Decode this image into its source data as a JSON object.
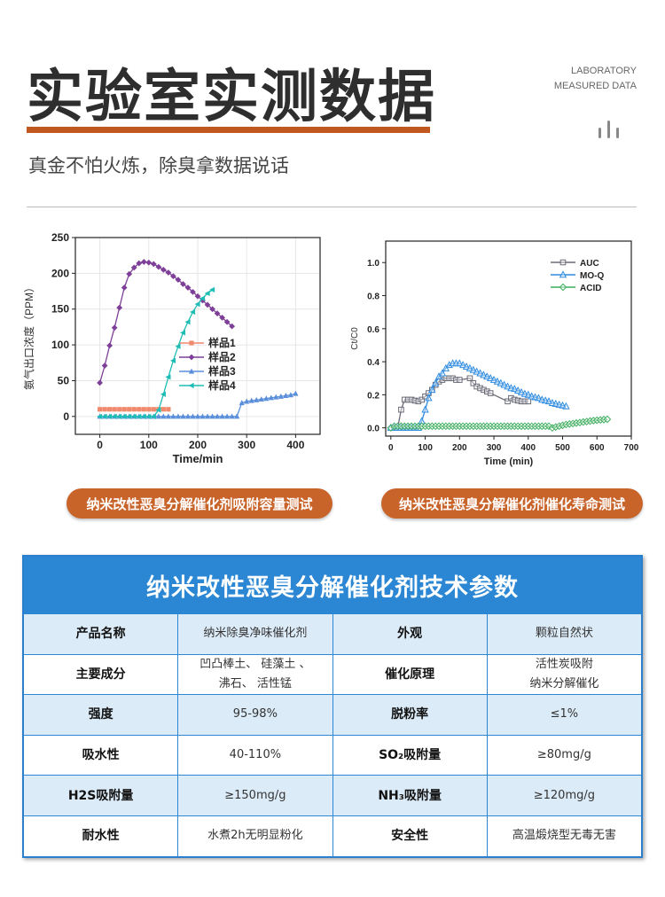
{
  "header": {
    "title": "实验室实测数据",
    "subtitle": "真金不怕火炼，除臭拿数据说话",
    "en_line1": "LABORATORY",
    "en_line2": "MEASURED DATA",
    "accent": "#c0581f"
  },
  "captions": [
    "纳米改性恶臭分解催化剂吸附容量测试",
    "纳米改性恶臭分解催化剂催化寿命测试"
  ],
  "chart_data": [
    {
      "type": "line",
      "title": "",
      "xlabel": "Time/min",
      "ylabel": "氨气出口浓度（PPM）",
      "xlim": [
        -50,
        450
      ],
      "ylim": [
        -25,
        250
      ],
      "xticks": [
        0,
        100,
        200,
        300,
        400
      ],
      "yticks": [
        0,
        50,
        100,
        150,
        200,
        250
      ],
      "legend": "center-right",
      "grid": true,
      "series": [
        {
          "name": "样品1",
          "color": "#f08a6c",
          "marker": "square",
          "x": [
            0,
            10,
            20,
            30,
            40,
            50,
            60,
            70,
            80,
            90,
            100,
            110,
            120,
            130,
            140
          ],
          "y": [
            10,
            10,
            10,
            10,
            10,
            10,
            10,
            10,
            10,
            10,
            10,
            10,
            10,
            10,
            10
          ]
        },
        {
          "name": "样品2",
          "color": "#7e3f98",
          "marker": "diamond",
          "x": [
            0,
            10,
            20,
            30,
            40,
            50,
            60,
            70,
            80,
            90,
            100,
            110,
            120,
            130,
            140,
            150,
            160,
            170,
            180,
            190,
            200,
            210,
            220,
            230,
            240,
            250,
            260,
            270
          ],
          "y": [
            47,
            71,
            99,
            124,
            152,
            180,
            199,
            208,
            214,
            216,
            215,
            213,
            209,
            205,
            201,
            196,
            191,
            185,
            180,
            174,
            168,
            162,
            156,
            150,
            144,
            138,
            132,
            126
          ]
        },
        {
          "name": "样品3",
          "color": "#5b8fdc",
          "marker": "triangle",
          "x": [
            0,
            10,
            20,
            30,
            40,
            50,
            60,
            70,
            80,
            90,
            100,
            110,
            120,
            130,
            140,
            150,
            160,
            170,
            180,
            190,
            200,
            210,
            220,
            230,
            240,
            250,
            260,
            270,
            280,
            290,
            300,
            310,
            320,
            330,
            340,
            350,
            360,
            370,
            380,
            390,
            400
          ],
          "y": [
            0,
            0,
            0,
            0,
            0,
            0,
            0,
            0,
            0,
            0,
            0,
            0,
            0,
            0,
            0,
            0,
            0,
            0,
            0,
            0,
            0,
            0,
            0,
            0,
            0,
            0,
            0,
            0,
            0,
            19,
            21,
            22,
            23,
            24,
            25,
            26,
            27,
            28,
            29,
            30,
            32
          ]
        },
        {
          "name": "样品4",
          "color": "#1dbdb5",
          "marker": "left-triangle",
          "x": [
            0,
            10,
            20,
            30,
            40,
            50,
            60,
            70,
            80,
            90,
            100,
            110,
            120,
            130,
            140,
            150,
            160,
            170,
            180,
            190,
            200,
            210,
            220,
            230
          ],
          "y": [
            0,
            0,
            0,
            0,
            0,
            0,
            0,
            0,
            0,
            0,
            0,
            0,
            9,
            31,
            55,
            78,
            98,
            117,
            132,
            146,
            157,
            165,
            172,
            177
          ]
        }
      ]
    },
    {
      "type": "line",
      "title": "",
      "xlabel": "Time (min)",
      "ylabel": "Ct/C0",
      "xlim": [
        -15,
        700
      ],
      "ylim": [
        -0.05,
        1.13
      ],
      "xticks": [
        0,
        100,
        200,
        300,
        400,
        500,
        600,
        700
      ],
      "yticks": [
        0.0,
        0.2,
        0.4,
        0.6,
        0.8,
        1.0
      ],
      "legend": "top-right",
      "grid": false,
      "series": [
        {
          "name": "AUC",
          "color": "#6b6b78",
          "marker": "square",
          "x": [
            10,
            20,
            30,
            40,
            50,
            60,
            70,
            80,
            90,
            100,
            110,
            120,
            130,
            140,
            150,
            160,
            170,
            180,
            190,
            200,
            230,
            240,
            250,
            260,
            270,
            280,
            290,
            340,
            350,
            360,
            370,
            380,
            390,
            400
          ],
          "y": [
            0,
            0,
            0.11,
            0.17,
            0.17,
            0.17,
            0.165,
            0.16,
            0.17,
            0.19,
            0.21,
            0.23,
            0.26,
            0.28,
            0.29,
            0.3,
            0.3,
            0.3,
            0.29,
            0.29,
            0.3,
            0.27,
            0.25,
            0.24,
            0.23,
            0.22,
            0.21,
            0.16,
            0.18,
            0.17,
            0.165,
            0.16,
            0.16,
            0.16
          ]
        },
        {
          "name": "MO-Q",
          "color": "#2e8be0",
          "marker": "triangle",
          "x": [
            0,
            10,
            20,
            30,
            40,
            50,
            60,
            70,
            80,
            90,
            100,
            110,
            120,
            130,
            140,
            150,
            160,
            170,
            180,
            190,
            200,
            210,
            220,
            230,
            240,
            250,
            260,
            270,
            280,
            290,
            300,
            310,
            320,
            330,
            340,
            350,
            360,
            370,
            380,
            390,
            400,
            410,
            420,
            430,
            440,
            450,
            460,
            470,
            480,
            490,
            500,
            510
          ],
          "y": [
            0,
            0,
            0,
            0,
            0,
            0,
            0,
            0,
            0,
            0.04,
            0.11,
            0.18,
            0.23,
            0.27,
            0.31,
            0.33,
            0.36,
            0.38,
            0.39,
            0.39,
            0.39,
            0.38,
            0.37,
            0.36,
            0.35,
            0.34,
            0.33,
            0.32,
            0.31,
            0.3,
            0.29,
            0.28,
            0.27,
            0.26,
            0.25,
            0.24,
            0.235,
            0.225,
            0.215,
            0.205,
            0.2,
            0.19,
            0.185,
            0.18,
            0.17,
            0.165,
            0.16,
            0.15,
            0.145,
            0.14,
            0.135,
            0.13
          ]
        },
        {
          "name": "ACID",
          "color": "#3fae5f",
          "marker": "diamond",
          "x": [
            0,
            10,
            20,
            30,
            40,
            50,
            60,
            70,
            80,
            90,
            100,
            110,
            120,
            130,
            140,
            150,
            160,
            170,
            180,
            190,
            200,
            210,
            220,
            230,
            240,
            250,
            260,
            270,
            280,
            290,
            300,
            310,
            320,
            330,
            340,
            350,
            360,
            370,
            380,
            390,
            400,
            410,
            420,
            430,
            440,
            450,
            460,
            470,
            480,
            490,
            500,
            510,
            520,
            530,
            540,
            550,
            560,
            570,
            580,
            590,
            600,
            610,
            620,
            630
          ],
          "y": [
            0,
            0.01,
            0.01,
            0.01,
            0.01,
            0.01,
            0.01,
            0.01,
            0.01,
            0.01,
            0.01,
            0.01,
            0.01,
            0.01,
            0.01,
            0.01,
            0.01,
            0.01,
            0.01,
            0.01,
            0.01,
            0.01,
            0.01,
            0.01,
            0.01,
            0.01,
            0.01,
            0.01,
            0.01,
            0.01,
            0.01,
            0.01,
            0.01,
            0.01,
            0.01,
            0.01,
            0.01,
            0.01,
            0.01,
            0.01,
            0.01,
            0.01,
            0.01,
            0.01,
            0.01,
            0.01,
            0.01,
            0.0,
            0.005,
            0.01,
            0.015,
            0.02,
            0.023,
            0.026,
            0.029,
            0.032,
            0.035,
            0.038,
            0.041,
            0.044,
            0.046,
            0.048,
            0.05,
            0.052
          ]
        }
      ]
    }
  ],
  "table": {
    "title": "纳米改性恶臭分解催化剂技术参数",
    "rows": [
      [
        "产品名称",
        "纳米除臭净味催化剂",
        "外观",
        "颗粒自然状"
      ],
      [
        "主要成分",
        "凹凸棒土、 硅藻土 、\n沸石、 活性锰",
        "催化原理",
        "活性炭吸附\n纳米分解催化"
      ],
      [
        "强度",
        "95-98%",
        "脱粉率",
        "≤1%"
      ],
      [
        "吸水性",
        "40-110%",
        "SO₂吸附量",
        "≥80mg/g"
      ],
      [
        "H2S吸附量",
        "≥150mg/g",
        "NH₃吸附量",
        "≥120mg/g"
      ],
      [
        "耐水性",
        "水煮2h无明显粉化",
        "安全性",
        "高温煅烧型无毒无害"
      ]
    ]
  }
}
